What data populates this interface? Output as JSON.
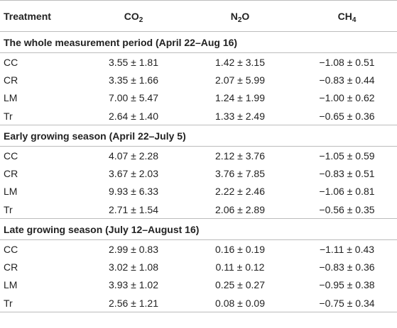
{
  "table": {
    "headers": {
      "treatment": "Treatment",
      "co2": {
        "base": "CO",
        "sub": "2"
      },
      "n2o": {
        "base": "N",
        "sub": "2",
        "tail": "O"
      },
      "ch4": {
        "base": "CH",
        "sub": "4"
      }
    },
    "sections": [
      {
        "title": "The whole measurement period (April 22–Aug 16)",
        "rows": [
          {
            "treatment": "CC",
            "co2": "3.55 ± 1.81",
            "n2o": "1.42 ± 3.15",
            "ch4": "−1.08 ± 0.51"
          },
          {
            "treatment": "CR",
            "co2": "3.35 ± 1.66",
            "n2o": "2.07 ± 5.99",
            "ch4": "−0.83 ± 0.44"
          },
          {
            "treatment": "LM",
            "co2": "7.00 ± 5.47",
            "n2o": "1.24 ± 1.99",
            "ch4": "−1.00 ± 0.62"
          },
          {
            "treatment": "Tr",
            "co2": "2.64 ± 1.40",
            "n2o": "1.33 ± 2.49",
            "ch4": "−0.65 ± 0.36"
          }
        ]
      },
      {
        "title": "Early growing season (April 22–July 5)",
        "rows": [
          {
            "treatment": "CC",
            "co2": "4.07 ± 2.28",
            "n2o": "2.12 ± 3.76",
            "ch4": "−1.05 ± 0.59"
          },
          {
            "treatment": "CR",
            "co2": "3.67 ± 2.03",
            "n2o": "3.76 ± 7.85",
            "ch4": "−0.83 ± 0.51"
          },
          {
            "treatment": "LM",
            "co2": "9.93 ± 6.33",
            "n2o": "2.22 ± 2.46",
            "ch4": "−1.06 ± 0.81"
          },
          {
            "treatment": "Tr",
            "co2": "2.71 ± 1.54",
            "n2o": "2.06 ± 2.89",
            "ch4": "−0.56 ± 0.35"
          }
        ]
      },
      {
        "title": "Late growing season (July 12–August 16)",
        "rows": [
          {
            "treatment": "CC",
            "co2": "2.99 ± 0.83",
            "n2o": "0.16 ± 0.19",
            "ch4": "−1.11 ± 0.43"
          },
          {
            "treatment": "CR",
            "co2": "3.02 ± 1.08",
            "n2o": "0.11 ± 0.12",
            "ch4": "−0.83 ± 0.36"
          },
          {
            "treatment": "LM",
            "co2": "3.93 ± 1.02",
            "n2o": "0.25 ± 0.27",
            "ch4": "−0.95 ± 0.38"
          },
          {
            "treatment": "Tr",
            "co2": "2.56 ± 1.21",
            "n2o": "0.08 ± 0.09",
            "ch4": "−0.75 ± 0.34"
          }
        ]
      }
    ]
  }
}
